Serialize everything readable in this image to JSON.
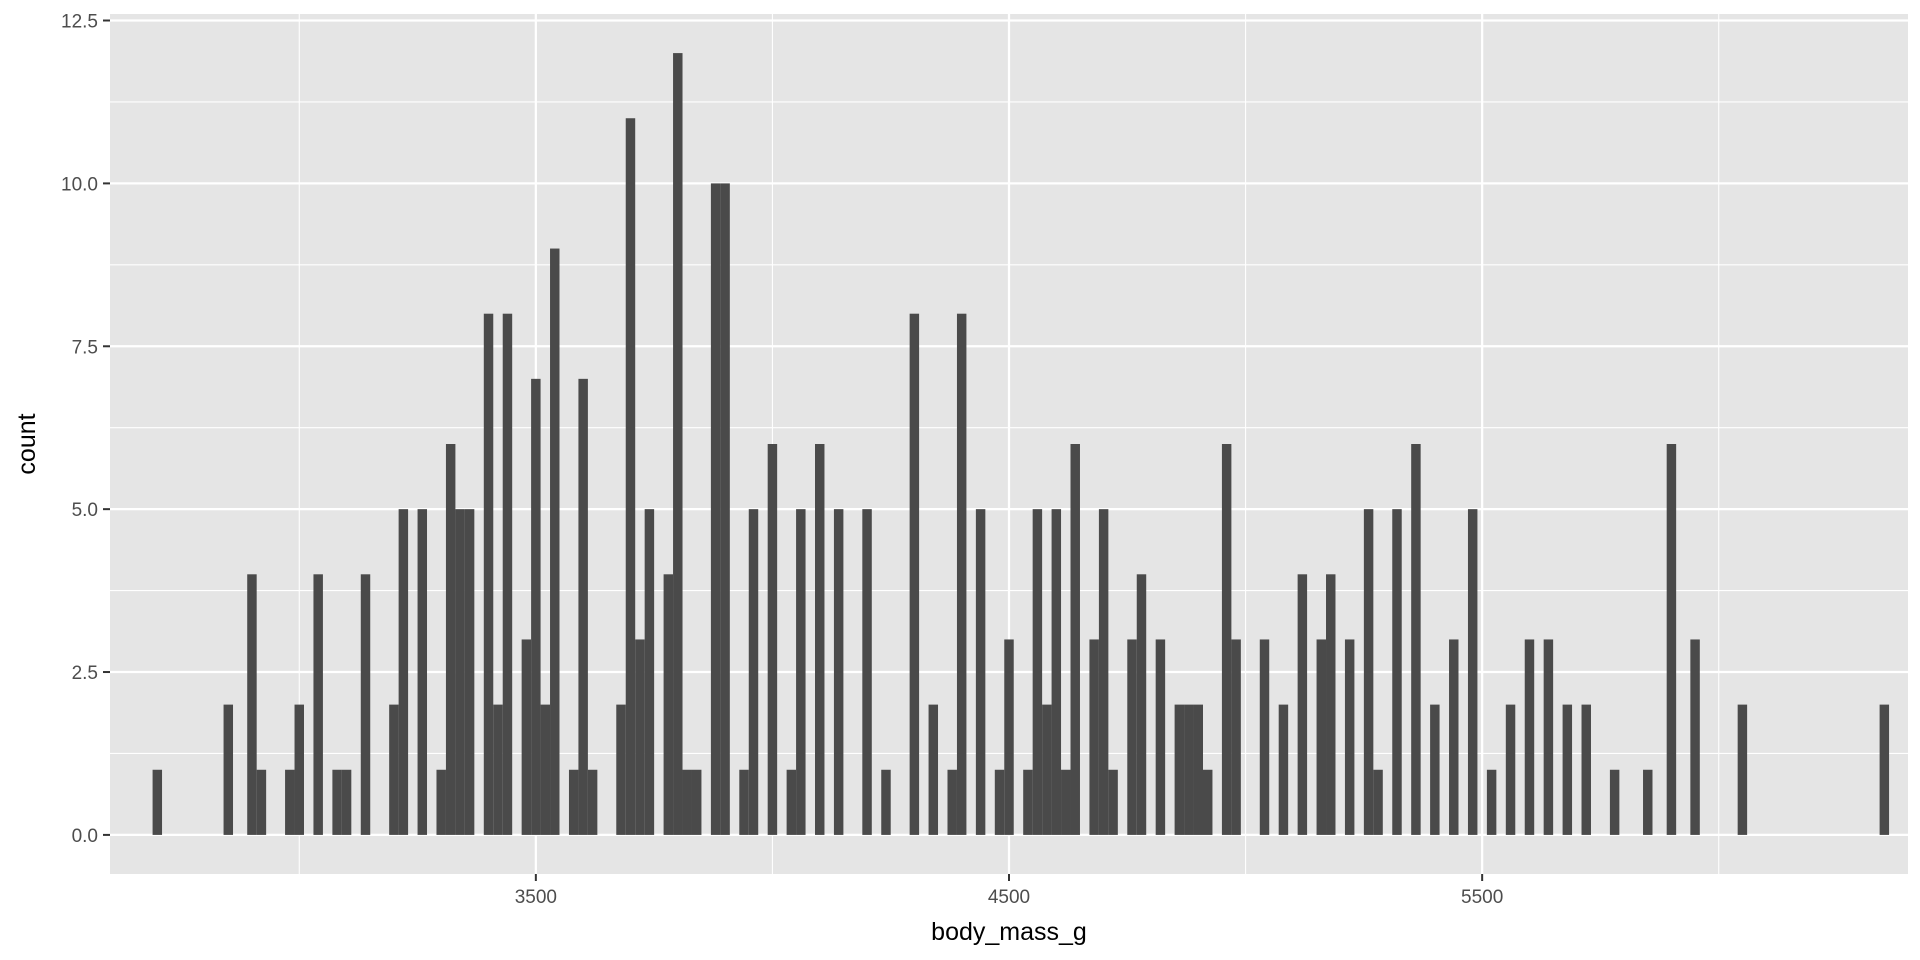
{
  "chart_data": {
    "type": "bar",
    "title": "",
    "xlabel": "body_mass_g",
    "ylabel": "count",
    "xlim": [
      2600,
      6400
    ],
    "ylim": [
      -0.6,
      12.6
    ],
    "x_ticks": [
      3500,
      4500,
      5500
    ],
    "x_minor_ticks": [
      3000,
      4000,
      5000,
      6000
    ],
    "y_ticks": [
      0.0,
      2.5,
      5.0,
      7.5,
      10.0,
      12.5
    ],
    "y_tick_labels": [
      "0.0",
      "2.5",
      "5.0",
      "7.5",
      "10.0",
      "12.5"
    ],
    "y_minor_ticks": [
      1.25,
      3.75,
      6.25,
      8.75,
      11.25
    ],
    "bin_width": 20,
    "grid": true,
    "colors": {
      "panel": "#e5e5e5",
      "grid": "#ffffff",
      "bar": "#4a4a4a",
      "tick_text": "#4d4d4d",
      "axis_title": "#000000"
    },
    "series": [
      {
        "x": [
          2700,
          2850,
          2900,
          2920,
          2980,
          3000,
          3040,
          3080,
          3100,
          3140,
          3200,
          3220,
          3260,
          3300,
          3320,
          3340,
          3360,
          3400,
          3420,
          3440,
          3480,
          3500,
          3520,
          3540,
          3580,
          3600,
          3620,
          3680,
          3700,
          3720,
          3740,
          3780,
          3800,
          3820,
          3840,
          3880,
          3900,
          3940,
          3960,
          4000,
          4040,
          4060,
          4100,
          4140,
          4200,
          4240,
          4300,
          4340,
          4380,
          4400,
          4440,
          4480,
          4500,
          4540,
          4560,
          4580,
          4600,
          4620,
          4640,
          4680,
          4700,
          4720,
          4760,
          4780,
          4820,
          4860,
          4880,
          4900,
          4920,
          4960,
          4980,
          5040,
          5080,
          5120,
          5160,
          5180,
          5220,
          5260,
          5280,
          5320,
          5360,
          5400,
          5440,
          5480,
          5520,
          5560,
          5600,
          5640,
          5680,
          5720,
          5780,
          5850,
          5900,
          5950,
          6050,
          6350
        ],
        "values": [
          1,
          2,
          4,
          1,
          1,
          2,
          4,
          1,
          1,
          4,
          2,
          5,
          5,
          1,
          6,
          5,
          5,
          8,
          2,
          8,
          3,
          7,
          2,
          9,
          1,
          7,
          1,
          2,
          11,
          3,
          5,
          4,
          12,
          1,
          1,
          10,
          10,
          1,
          5,
          6,
          1,
          5,
          6,
          5,
          5,
          1,
          8,
          2,
          1,
          8,
          5,
          1,
          3,
          1,
          5,
          2,
          5,
          1,
          6,
          3,
          5,
          1,
          3,
          4,
          3,
          2,
          2,
          2,
          1,
          6,
          3,
          3,
          2,
          4,
          3,
          4,
          3,
          5,
          1,
          5,
          6,
          2,
          3,
          5,
          1,
          2,
          3,
          3,
          2,
          2,
          1,
          1,
          6,
          3,
          2,
          2
        ]
      }
    ]
  }
}
